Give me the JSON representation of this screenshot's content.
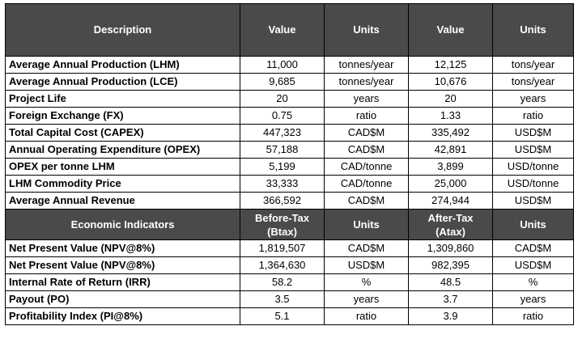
{
  "table1": {
    "headers": [
      "Description",
      "Value",
      "Units",
      "Value",
      "Units"
    ],
    "rows": [
      [
        "Average Annual Production (LHM)",
        "11,000",
        "tonnes/year",
        "12,125",
        "tons/year"
      ],
      [
        "Average Annual Production (LCE)",
        "9,685",
        "tonnes/year",
        "10,676",
        "tons/year"
      ],
      [
        "Project Life",
        "20",
        "years",
        "20",
        "years"
      ],
      [
        "Foreign Exchange (FX)",
        "0.75",
        "ratio",
        "1.33",
        "ratio"
      ],
      [
        "Total Capital Cost (CAPEX)",
        "447,323",
        "CAD$M",
        "335,492",
        "USD$M"
      ],
      [
        "Annual Operating Expenditure (OPEX)",
        "57,188",
        "CAD$M",
        "42,891",
        "USD$M"
      ],
      [
        "OPEX per tonne LHM",
        "5,199",
        "CAD/tonne",
        "3,899",
        "USD/tonne"
      ],
      [
        "LHM Commodity Price",
        "33,333",
        "CAD/tonne",
        "25,000",
        "USD/tonne"
      ],
      [
        "Average Annual Revenue",
        "366,592",
        "CAD$M",
        "274,944",
        "USD$M"
      ]
    ]
  },
  "table2": {
    "headers": {
      "indicator": "Economic Indicators",
      "before_tax_line1": "Before-Tax",
      "before_tax_line2": "(Btax)",
      "units1": "Units",
      "after_tax_line1": "After-Tax",
      "after_tax_line2": "(Atax)",
      "units2": "Units"
    },
    "rows": [
      [
        "Net Present Value (NPV@8%)",
        "1,819,507",
        "CAD$M",
        "1,309,860",
        "CAD$M"
      ],
      [
        "Net Present Value (NPV@8%)",
        "1,364,630",
        "USD$M",
        "982,395",
        "USD$M"
      ],
      [
        "Internal Rate of Return (IRR)",
        "58.2",
        "%",
        "48.5",
        "%"
      ],
      [
        "Payout (PO)",
        "3.5",
        "years",
        "3.7",
        "years"
      ],
      [
        "Profitability Index (PI@8%)",
        "5.1",
        "ratio",
        "3.9",
        "ratio"
      ]
    ]
  }
}
